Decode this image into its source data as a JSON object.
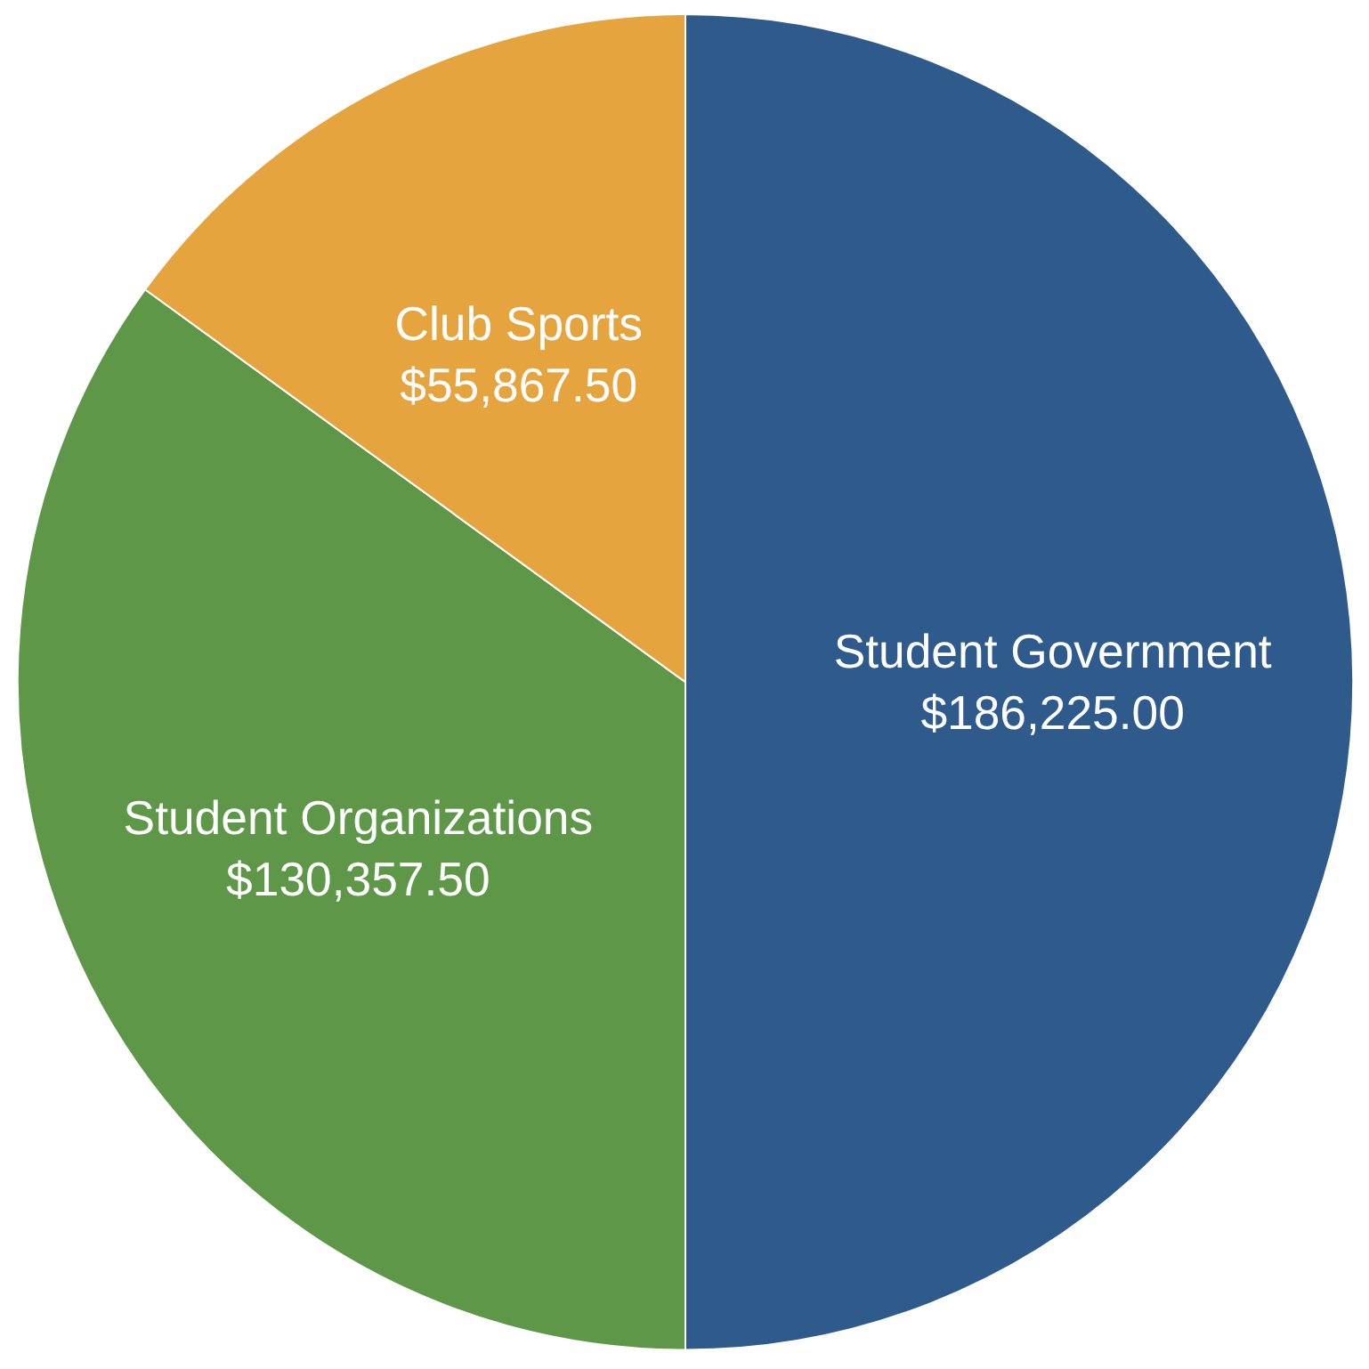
{
  "chart_data": {
    "type": "pie",
    "categories": [
      "Student Government",
      "Student Organizations",
      "Club Sports"
    ],
    "values": [
      186225.0,
      130357.5,
      55867.5
    ],
    "value_labels": [
      "$186,225.00",
      "$130,357.50",
      "$55,867.50"
    ],
    "colors": [
      "#2e5a8c",
      "#5e9748",
      "#e6a43e"
    ]
  }
}
